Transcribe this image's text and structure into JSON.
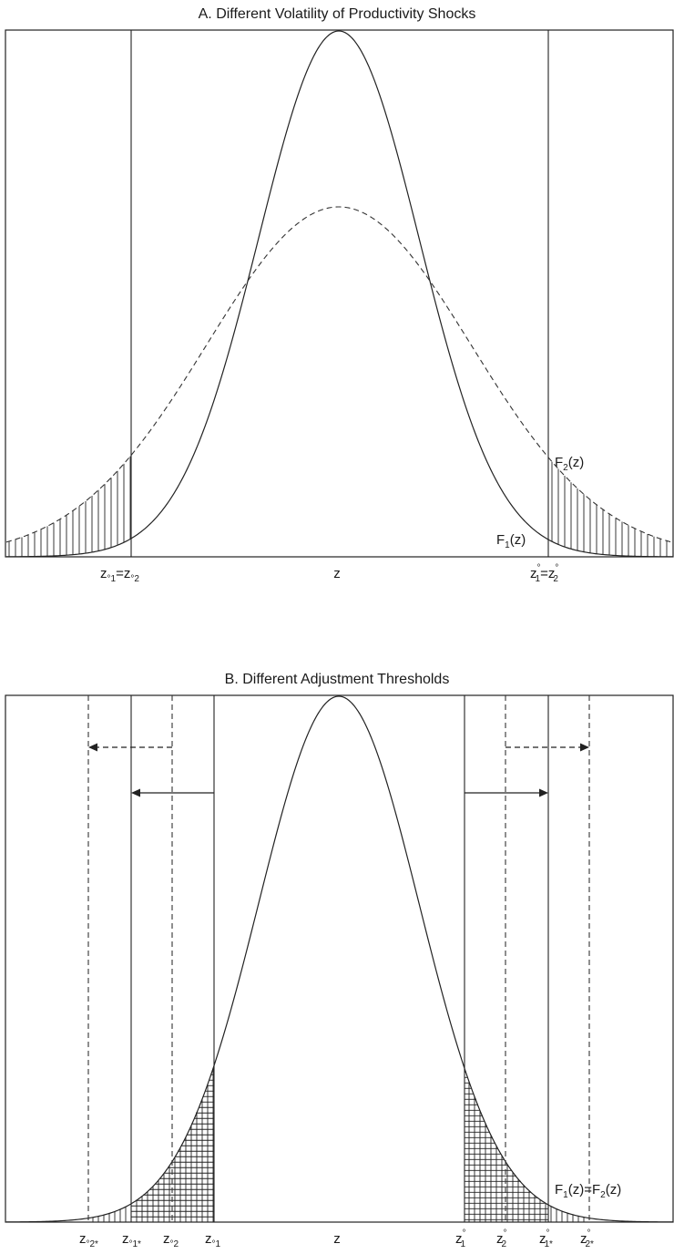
{
  "panel_a": {
    "title": "A. Different Volatility of Productivity Shocks",
    "x_axis_label": "z",
    "left_threshold_label": {
      "a": "z",
      "a_sub": "°1",
      "eq": "=",
      "b": "z",
      "b_sub": "°2"
    },
    "right_threshold_label": {
      "a": "z",
      "a_sup": "°",
      "a_sub": "1",
      "eq": "=",
      "b": "z",
      "b_sup": "°",
      "b_sub": "2"
    },
    "curve_labels": [
      {
        "id": "F2",
        "prefix": "F",
        "sub": "2",
        "suffix": "(z)"
      },
      {
        "id": "F1",
        "prefix": "F",
        "sub": "1",
        "suffix": "(z)"
      }
    ]
  },
  "panel_b": {
    "title": "B. Different Adjustment Thresholds",
    "x_axis_label": "z",
    "curve_label": {
      "p1": "F",
      "s1": "1",
      "m": "(z)=F",
      "s2": "2",
      "p2": "(z)"
    },
    "tick_labels": [
      {
        "id": "zo2star",
        "base": "z",
        "sub": "°2*",
        "sup": ""
      },
      {
        "id": "zo1star",
        "base": "z",
        "sub": "°1*",
        "sup": ""
      },
      {
        "id": "zo2",
        "base": "z",
        "sub": "°2",
        "sup": ""
      },
      {
        "id": "zo1",
        "base": "z",
        "sub": "°1",
        "sup": ""
      },
      {
        "id": "z1",
        "base": "z",
        "sub": "1",
        "sup": "°"
      },
      {
        "id": "z2",
        "base": "z",
        "sub": "2",
        "sup": "°"
      },
      {
        "id": "z1star",
        "base": "z",
        "sub": "1*",
        "sup": "°"
      },
      {
        "id": "z2star",
        "base": "z",
        "sub": "2*",
        "sup": "°"
      }
    ]
  }
}
